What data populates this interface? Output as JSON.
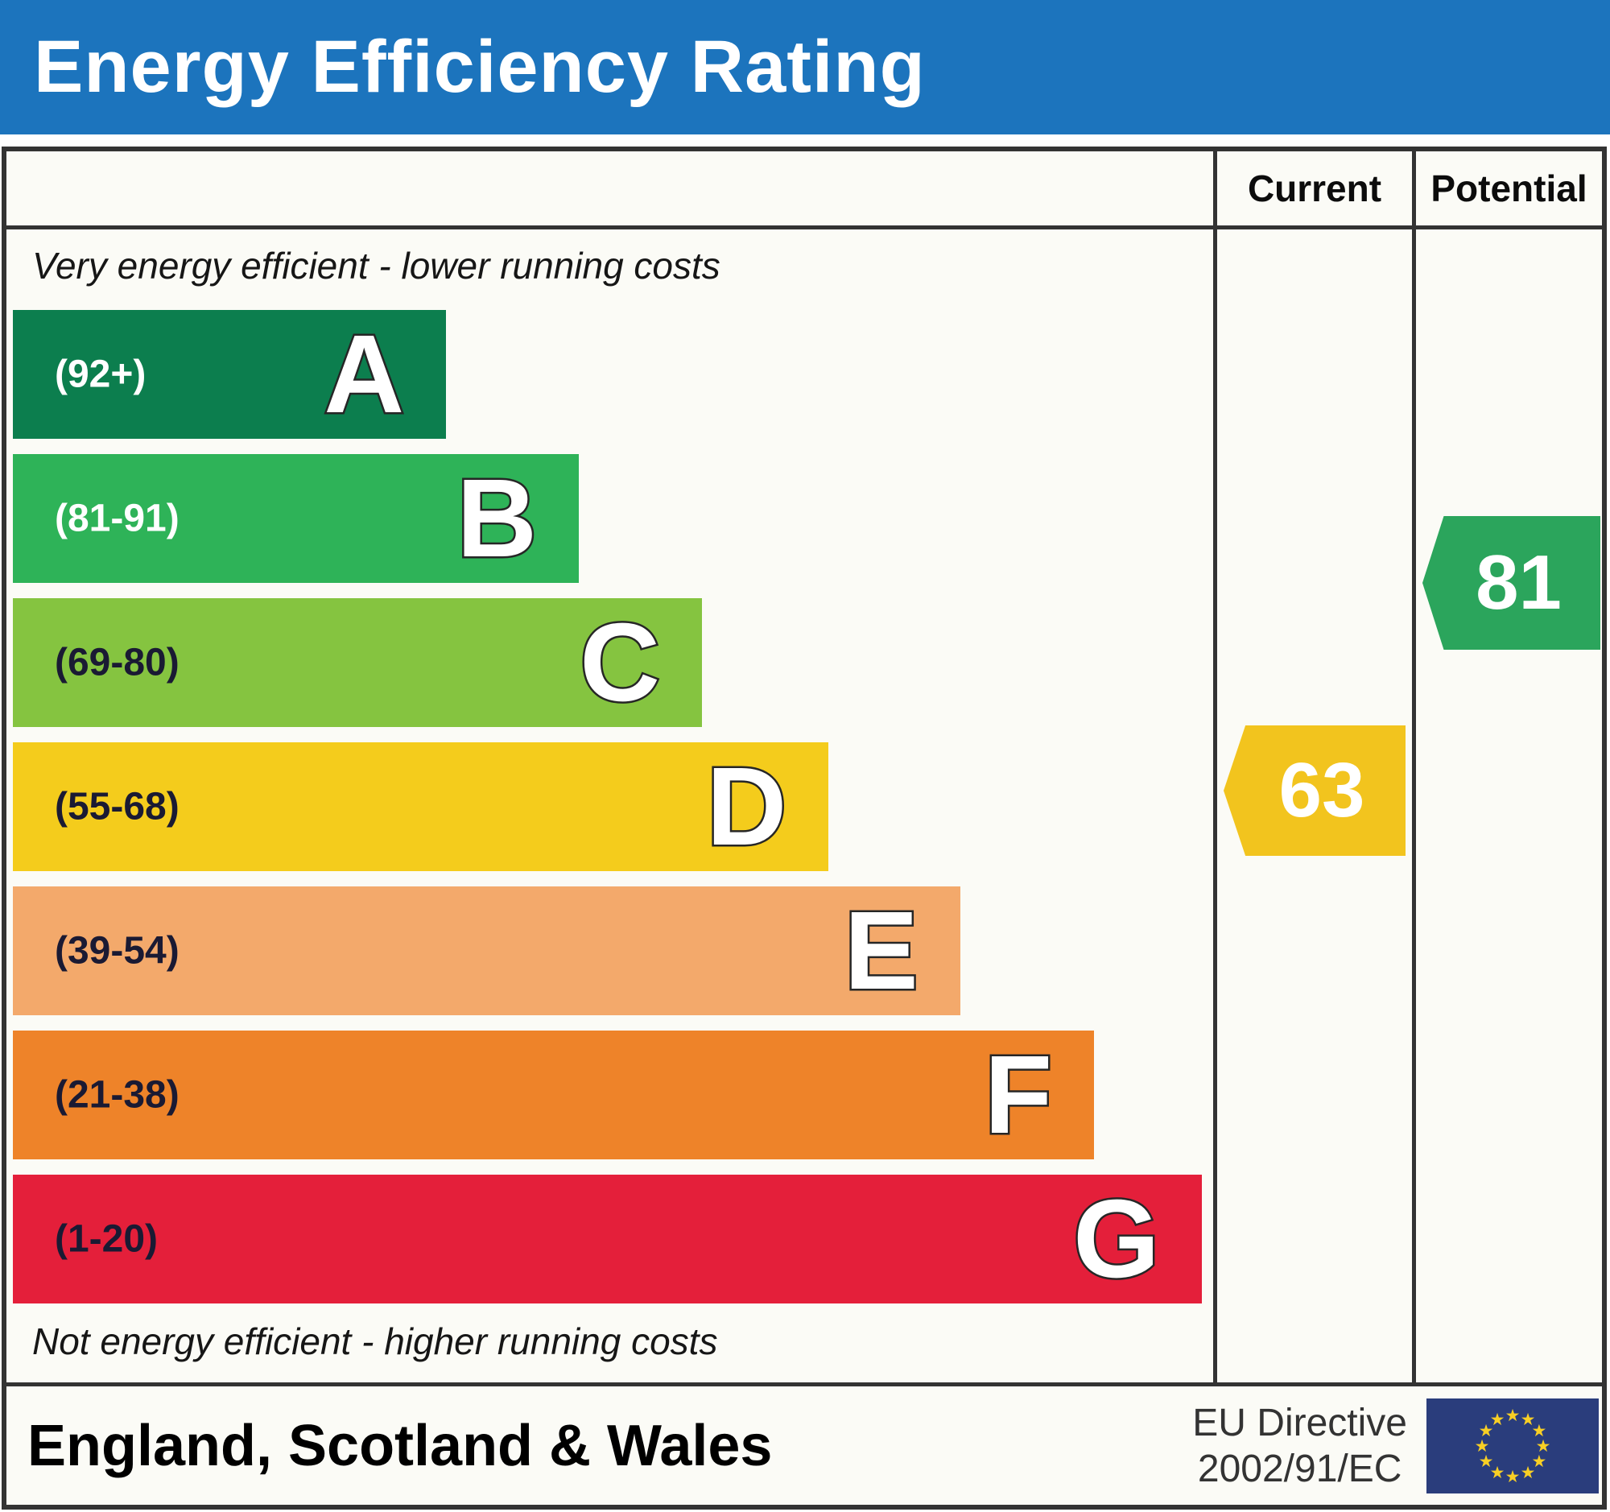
{
  "title": "Energy Efficiency Rating",
  "palette": {
    "title_bar_bg": "#1c74bd",
    "title_color": "#ffffff",
    "border": "#333333",
    "panel_bg": "#fbfbf6"
  },
  "columns": {
    "current": "Current",
    "potential": "Potential"
  },
  "top_note": "Very energy efficient - lower running costs",
  "bottom_note": "Not energy efficient - higher running costs",
  "bands": [
    {
      "letter": "A",
      "range": "(92+)",
      "color": "#0c7e4e",
      "width_pct": 35.9,
      "label_color": "#ffffff"
    },
    {
      "letter": "B",
      "range": "(81-91)",
      "color": "#2eb358",
      "width_pct": 46.9,
      "label_color": "#ffffff"
    },
    {
      "letter": "C",
      "range": "(69-80)",
      "color": "#85c440",
      "width_pct": 57.1,
      "label_color": "#1a1a33"
    },
    {
      "letter": "D",
      "range": "(55-68)",
      "color": "#f4cc1c",
      "width_pct": 67.6,
      "label_color": "#1a1a33"
    },
    {
      "letter": "E",
      "range": "(39-54)",
      "color": "#f3a96b",
      "width_pct": 78.5,
      "label_color": "#1a1a33"
    },
    {
      "letter": "F",
      "range": "(21-38)",
      "color": "#ee8329",
      "width_pct": 89.6,
      "label_color": "#1a1a33"
    },
    {
      "letter": "G",
      "range": "(1-20)",
      "color": "#e41f3a",
      "width_pct": 98.5,
      "label_color": "#1a1a33"
    }
  ],
  "markers": {
    "current": {
      "value": "63",
      "band": "D",
      "color": "#f2c41e",
      "text_color": "#ffffff"
    },
    "potential": {
      "value": "81",
      "band": "B",
      "color": "#2ba55c",
      "text_color": "#ffffff"
    }
  },
  "footer": {
    "region": "England, Scotland & Wales",
    "directive_line1": "EU Directive",
    "directive_line2": "2002/91/EC",
    "eu_flag": {
      "stars": 12,
      "bg": "#2a3d7c",
      "star_color": "#f8cf25"
    }
  },
  "chart_data": {
    "type": "bar",
    "title": "Energy Efficiency Rating",
    "categories": [
      "A",
      "B",
      "C",
      "D",
      "E",
      "F",
      "G"
    ],
    "band_ranges": [
      "92+",
      "81-91",
      "69-80",
      "55-68",
      "39-54",
      "21-38",
      "1-20"
    ],
    "band_colors": [
      "#0c7e4e",
      "#2eb358",
      "#85c440",
      "#f4cc1c",
      "#f3a96b",
      "#ee8329",
      "#e41f3a"
    ],
    "bar_width_pct": [
      35.9,
      46.9,
      57.1,
      67.6,
      78.5,
      89.6,
      98.5
    ],
    "series": [
      {
        "name": "Current",
        "value": 63,
        "band": "D"
      },
      {
        "name": "Potential",
        "value": 81,
        "band": "B"
      }
    ],
    "score_range": [
      1,
      100
    ],
    "notes": [
      "Very energy efficient - lower running costs",
      "Not energy efficient - higher running costs"
    ],
    "region": "England, Scotland & Wales",
    "directive": "EU Directive 2002/91/EC",
    "legend_position": "top-right-columns",
    "grid": false
  }
}
